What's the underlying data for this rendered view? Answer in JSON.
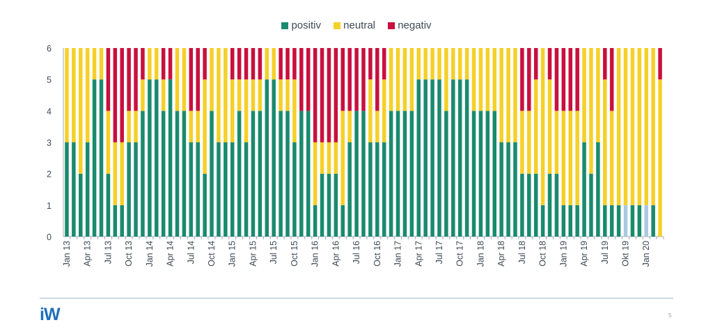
{
  "slide": {
    "logo": "iW",
    "page_number": "5"
  },
  "colors": {
    "positiv": "#1a8a6e",
    "positiv_highlight": "#aac8e0",
    "neutral": "#f5d029",
    "negativ": "#c8103e",
    "axis": "#a0a8b0"
  },
  "chart_data": {
    "type": "bar",
    "stacked": true,
    "title": "",
    "xlabel": "",
    "ylabel": "",
    "ylim": [
      0,
      6
    ],
    "yticks": [
      0,
      1,
      2,
      3,
      4,
      5,
      6
    ],
    "legend_position": "top-center",
    "grid": false,
    "categories": [
      "Jan 13",
      "Feb 13",
      "Mar 13",
      "Apr 13",
      "May 13",
      "Jun 13",
      "Jul 13",
      "Aug 13",
      "Sep 13",
      "Oct 13",
      "Nov 13",
      "Dec 13",
      "Jan 14",
      "Feb 14",
      "Mar 14",
      "Apr 14",
      "May 14",
      "Jun 14",
      "Jul 14",
      "Aug 14",
      "Sep 14",
      "Oct 14",
      "Nov 14",
      "Dec 14",
      "Jan 15",
      "Feb 15",
      "Mar 15",
      "Apr 15",
      "May 15",
      "Jun 15",
      "Jul 15",
      "Aug 15",
      "Sep 15",
      "Oct 15",
      "Nov 15",
      "Dec 15",
      "Jan 16",
      "Feb 16",
      "Mar 16",
      "Apr 16",
      "May 16",
      "Jun 16",
      "Jul 16",
      "Aug 16",
      "Sep 16",
      "Oct 16",
      "Nov 16",
      "Dec 16",
      "Jan 17",
      "Feb 17",
      "Mar 17",
      "Apr 17",
      "May 17",
      "Jun 17",
      "Jul 17",
      "Aug 17",
      "Sep 17",
      "Oct 17",
      "Nov 17",
      "Dec 17",
      "Jan 18",
      "Feb 18",
      "Mar 18",
      "Apr 18",
      "May 18",
      "Jun 18",
      "Jul 18",
      "Aug 18",
      "Sep 18",
      "Oct 18",
      "Nov 18",
      "Dec 18",
      "Jan 19",
      "Feb 19",
      "Mar 19",
      "Apr 19",
      "May 19",
      "Jun 19",
      "Jul 19",
      "Aug 19",
      "Sep 19",
      "Okt 19",
      "Nov 19",
      "Dec 19",
      "Jan 20",
      "Feb 20",
      "Mar 20"
    ],
    "tick_labels": [
      "Jan 13",
      "Apr 13",
      "Jul 13",
      "Oct 13",
      "Jan 14",
      "Apr 14",
      "Jul 14",
      "Oct 14",
      "Jan 15",
      "Apr 15",
      "Jul 15",
      "Oct 15",
      "Jan 16",
      "Apr 16",
      "Jul 16",
      "Oct 16",
      "Jan 17",
      "Apr 17",
      "Jul 17",
      "Oct 17",
      "Jan 18",
      "Apr 18",
      "Jul 18",
      "Oct 18",
      "Jan 19",
      "Apr 19",
      "Jul 19",
      "Okt 19",
      "Jan 20"
    ],
    "highlighted_positiv": [
      "Okt 19",
      "Jan 20"
    ],
    "series": [
      {
        "name": "positiv",
        "values": [
          3,
          3,
          2,
          3,
          5,
          5,
          2,
          1,
          1,
          3,
          3,
          4,
          5,
          5,
          4,
          5,
          4,
          4,
          3,
          3,
          2,
          4,
          3,
          3,
          3,
          4,
          3,
          4,
          4,
          5,
          5,
          4,
          4,
          3,
          4,
          4,
          1,
          2,
          2,
          2,
          1,
          3,
          4,
          4,
          3,
          3,
          3,
          4,
          4,
          4,
          4,
          5,
          5,
          5,
          5,
          4,
          5,
          5,
          5,
          4,
          4,
          4,
          4,
          3,
          3,
          3,
          2,
          2,
          2,
          1,
          2,
          2,
          1,
          1,
          1,
          3,
          2,
          3,
          1,
          1,
          1,
          1,
          1,
          1,
          1,
          1,
          0
        ]
      },
      {
        "name": "neutral",
        "values": [
          3,
          3,
          4,
          3,
          1,
          1,
          2,
          2,
          2,
          1,
          1,
          1,
          1,
          1,
          1,
          0,
          2,
          2,
          1,
          1,
          3,
          2,
          3,
          3,
          2,
          1,
          2,
          1,
          1,
          1,
          1,
          1,
          1,
          2,
          0,
          0,
          2,
          1,
          1,
          1,
          3,
          1,
          0,
          0,
          2,
          1,
          2,
          2,
          2,
          2,
          2,
          1,
          1,
          1,
          1,
          2,
          1,
          1,
          1,
          2,
          2,
          2,
          2,
          3,
          3,
          3,
          2,
          2,
          3,
          5,
          3,
          2,
          3,
          3,
          3,
          3,
          4,
          3,
          4,
          3,
          5,
          5,
          5,
          5,
          5,
          5,
          5
        ]
      },
      {
        "name": "negativ",
        "values": [
          0,
          0,
          0,
          0,
          0,
          0,
          2,
          3,
          3,
          2,
          2,
          1,
          0,
          0,
          1,
          1,
          0,
          0,
          2,
          2,
          1,
          0,
          0,
          0,
          1,
          1,
          1,
          1,
          1,
          0,
          0,
          1,
          1,
          1,
          2,
          2,
          3,
          3,
          3,
          3,
          2,
          2,
          2,
          2,
          1,
          2,
          1,
          0,
          0,
          0,
          0,
          0,
          0,
          0,
          0,
          0,
          0,
          0,
          0,
          0,
          0,
          0,
          0,
          0,
          0,
          0,
          2,
          2,
          1,
          0,
          1,
          2,
          2,
          2,
          2,
          0,
          0,
          0,
          1,
          2,
          0,
          0,
          0,
          0,
          0,
          0,
          1
        ]
      }
    ]
  }
}
